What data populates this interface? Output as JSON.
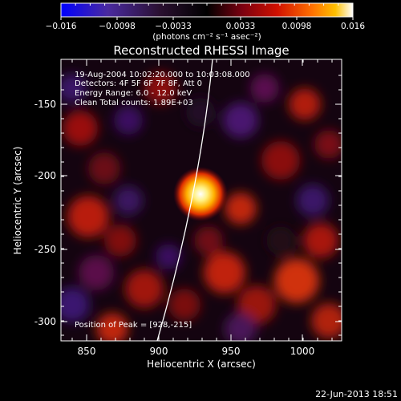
{
  "colorbar": {
    "ticks": [
      "−0.016",
      "−0.0098",
      "−0.0033",
      "0.0033",
      "0.0098",
      "0.016"
    ],
    "units": "(photons cm⁻² s⁻¹ asec⁻²)"
  },
  "title": "Reconstructed RHESSI Image",
  "annotations": {
    "line1": "19-Aug-2004 10:02:20.000 to 10:03:08.000",
    "line2": "Detectors: 4F 5F 6F 7F 8F, Att 0",
    "line3": "Energy Range: 6.0 - 12.0 keV",
    "line4": "Clean     Total counts: 1.89E+03",
    "peak": "Position of Peak = [928,-215]"
  },
  "axes": {
    "xlabel": "Heliocentric X (arcsec)",
    "ylabel": "Heliocentric Y (arcsec)",
    "xticks": [
      "850",
      "900",
      "950",
      "1000"
    ],
    "yticks": [
      "-150",
      "-200",
      "-250",
      "-300"
    ]
  },
  "footer": {
    "timestamp": "22-Jun-2013 18:51"
  },
  "colors": {
    "background": "#000000",
    "axis": "#ffffff"
  }
}
